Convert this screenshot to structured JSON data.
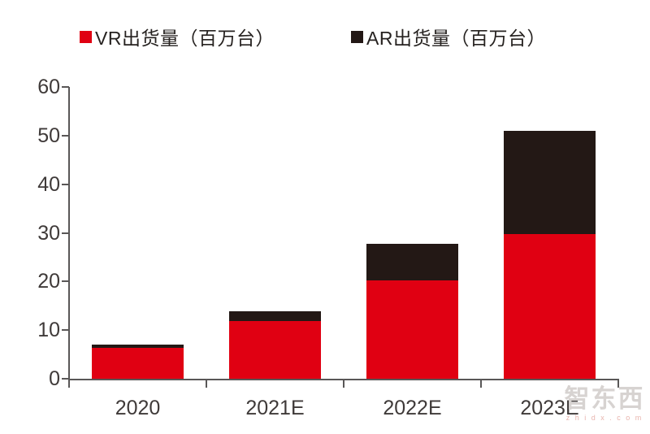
{
  "legend": [
    {
      "label": "VR出货量（百万台）",
      "color": "#e00012",
      "icon": "red-square-swatch"
    },
    {
      "label": "AR出货量（百万台）",
      "color": "#231815",
      "icon": "black-square-swatch"
    }
  ],
  "chart_data": {
    "type": "bar",
    "stacked": true,
    "title": "",
    "xlabel": "",
    "ylabel": "",
    "categories": [
      "2020",
      "2021E",
      "2022E",
      "2023E"
    ],
    "series": [
      {
        "name": "VR出货量（百万台）",
        "color": "#e00012",
        "values": [
          6.3,
          11.8,
          20.2,
          29.7
        ]
      },
      {
        "name": "AR出货量（百万台）",
        "color": "#231815",
        "values": [
          0.7,
          2.0,
          7.6,
          21.3
        ]
      }
    ],
    "ylim": [
      0,
      60
    ],
    "yticks": [
      0,
      10,
      20,
      30,
      40,
      50,
      60
    ],
    "grid": false,
    "legend_position": "top"
  },
  "watermark": {
    "brand": "智东西",
    "domain": "z h i d x . c o m"
  },
  "colors": {
    "axis": "#595757",
    "tick_label": "#3f3a39",
    "background": "#ffffff"
  }
}
